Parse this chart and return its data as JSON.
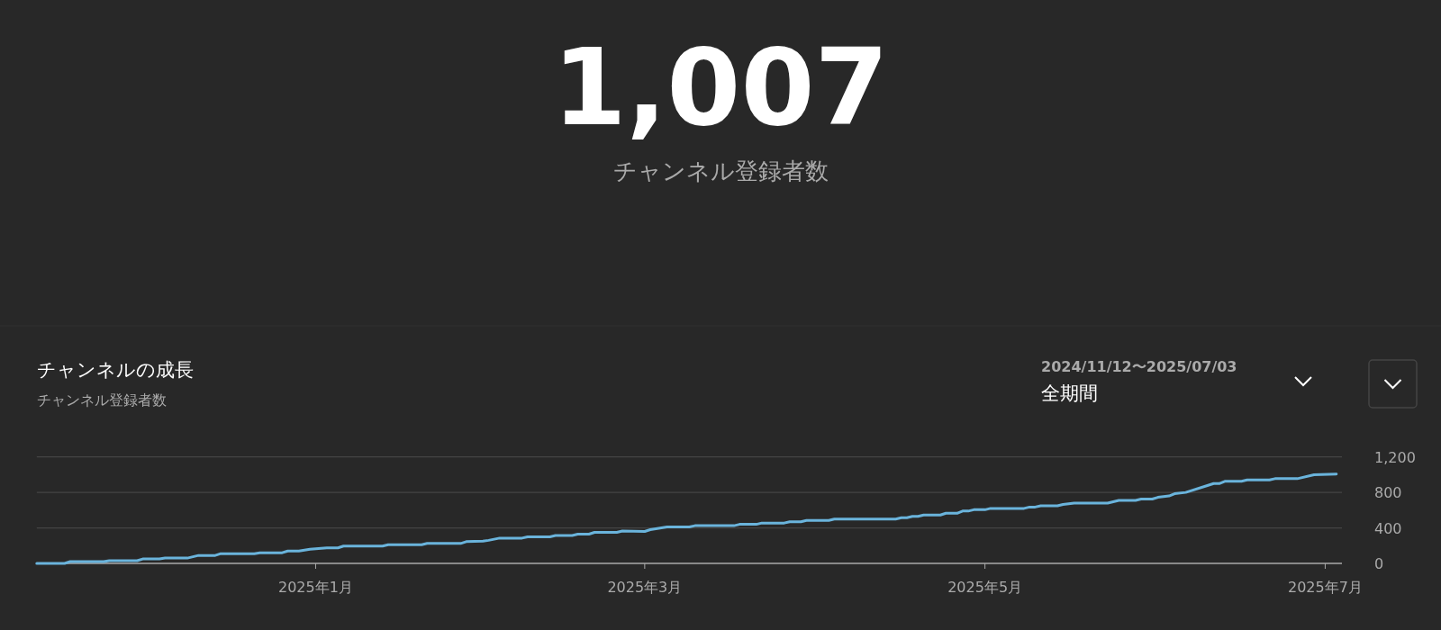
{
  "chart_data": [
    {
      "type": "other",
      "title": "1,007",
      "subtitle": "チャンネル登録者数"
    },
    {
      "type": "line",
      "title": "チャンネルの成長",
      "subtitle": "チャンネル登録者数",
      "annotations": [
        "2024/11/12〜2025/07/03",
        "全期間"
      ],
      "x": [
        "2024-11-12",
        "2024-11-17",
        "2024-11-18",
        "2024-11-24",
        "2024-11-25",
        "2024-11-30",
        "2024-12-01",
        "2024-12-04",
        "2024-12-05",
        "2024-12-09",
        "2024-12-11",
        "2024-12-14",
        "2024-12-15",
        "2024-12-21",
        "2024-12-22",
        "2024-12-26",
        "2024-12-27",
        "2024-12-29",
        "2024-12-30",
        "2024-12-31",
        "2025-01-03",
        "2025-01-05",
        "2025-01-06",
        "2025-01-13",
        "2025-01-14",
        "2025-01-20",
        "2025-01-21",
        "2025-01-27",
        "2025-01-28",
        "2025-01-31",
        "2025-02-01",
        "2025-02-03",
        "2025-02-07",
        "2025-02-08",
        "2025-02-12",
        "2025-02-13",
        "2025-02-16",
        "2025-02-17",
        "2025-02-19",
        "2025-02-20",
        "2025-02-24",
        "2025-02-25",
        "2025-03-01",
        "2025-03-02",
        "2025-03-03",
        "2025-03-05",
        "2025-03-09",
        "2025-03-10",
        "2025-03-17",
        "2025-03-18",
        "2025-03-21",
        "2025-03-22",
        "2025-03-26",
        "2025-03-27",
        "2025-03-29",
        "2025-03-30",
        "2025-04-03",
        "2025-04-04",
        "2025-04-15",
        "2025-04-16",
        "2025-04-17",
        "2025-04-18",
        "2025-04-19",
        "2025-04-20",
        "2025-04-23",
        "2025-04-24",
        "2025-04-26",
        "2025-04-27",
        "2025-04-28",
        "2025-04-29",
        "2025-05-01",
        "2025-05-02",
        "2025-05-08",
        "2025-05-09",
        "2025-05-10",
        "2025-05-11",
        "2025-05-14",
        "2025-05-15",
        "2025-05-17",
        "2025-05-23",
        "2025-05-25",
        "2025-05-28",
        "2025-05-29",
        "2025-05-31",
        "2025-06-01",
        "2025-06-03",
        "2025-06-04",
        "2025-06-06",
        "2025-06-10",
        "2025-06-11",
        "2025-06-12",
        "2025-06-13",
        "2025-06-16",
        "2025-06-17",
        "2025-06-21",
        "2025-06-22",
        "2025-06-26",
        "2025-06-29",
        "2025-07-03"
      ],
      "series": [
        {
          "color": "#6ab4dc",
          "values": [
            0,
            0,
            20,
            20,
            30,
            30,
            50,
            50,
            60,
            60,
            90,
            90,
            110,
            110,
            120,
            120,
            140,
            140,
            150,
            160,
            175,
            175,
            195,
            195,
            210,
            210,
            225,
            225,
            245,
            250,
            260,
            285,
            285,
            300,
            300,
            315,
            315,
            330,
            330,
            350,
            350,
            365,
            360,
            380,
            390,
            410,
            410,
            425,
            425,
            440,
            440,
            455,
            455,
            470,
            470,
            485,
            485,
            500,
            500,
            515,
            515,
            530,
            530,
            545,
            545,
            565,
            565,
            590,
            590,
            605,
            605,
            620,
            620,
            635,
            635,
            650,
            650,
            665,
            680,
            680,
            710,
            710,
            725,
            725,
            745,
            760,
            785,
            800,
            880,
            900,
            900,
            925,
            925,
            940,
            940,
            955,
            955,
            1000,
            1007
          ]
        }
      ],
      "xlim": [
        "2024-11-12",
        "2025-07-04"
      ],
      "xticks": [
        {
          "value": "2025-01-01",
          "label": "2025年1月"
        },
        {
          "value": "2025-03-01",
          "label": "2025年3月"
        },
        {
          "value": "2025-05-01",
          "label": "2025年5月"
        },
        {
          "value": "2025-07-01",
          "label": "2025年7月"
        }
      ],
      "ylim": [
        0,
        1200
      ],
      "yticks": [
        0,
        400,
        800,
        {
          "value": 1200,
          "label": "1,200"
        }
      ],
      "grid": "y"
    }
  ]
}
